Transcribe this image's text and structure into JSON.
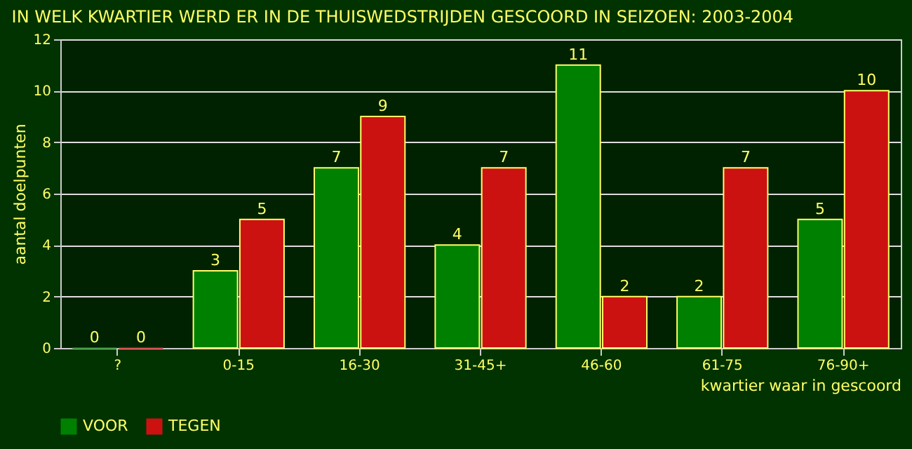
{
  "chart_data": {
    "type": "bar",
    "title": "IN WELK KWARTIER WERD ER IN DE THUISWEDSTRIJDEN GESCOORD IN SEIZOEN: 2003-2004",
    "xlabel": "kwartier waar in gescoord",
    "ylabel": "aantal doelpunten",
    "categories": [
      "?",
      "0-15",
      "16-30",
      "31-45+",
      "46-60",
      "61-75",
      "76-90+"
    ],
    "series": [
      {
        "name": "VOOR",
        "color": "#008000",
        "values": [
          0,
          3,
          7,
          4,
          11,
          2,
          5
        ]
      },
      {
        "name": "TEGEN",
        "color": "#cc1111",
        "values": [
          0,
          5,
          9,
          7,
          2,
          7,
          10
        ]
      }
    ],
    "ylim": [
      0,
      12
    ],
    "yticks": [
      0,
      2,
      4,
      6,
      8,
      10,
      12
    ],
    "grid": "y",
    "legend": "bottom",
    "data_labels": true
  }
}
